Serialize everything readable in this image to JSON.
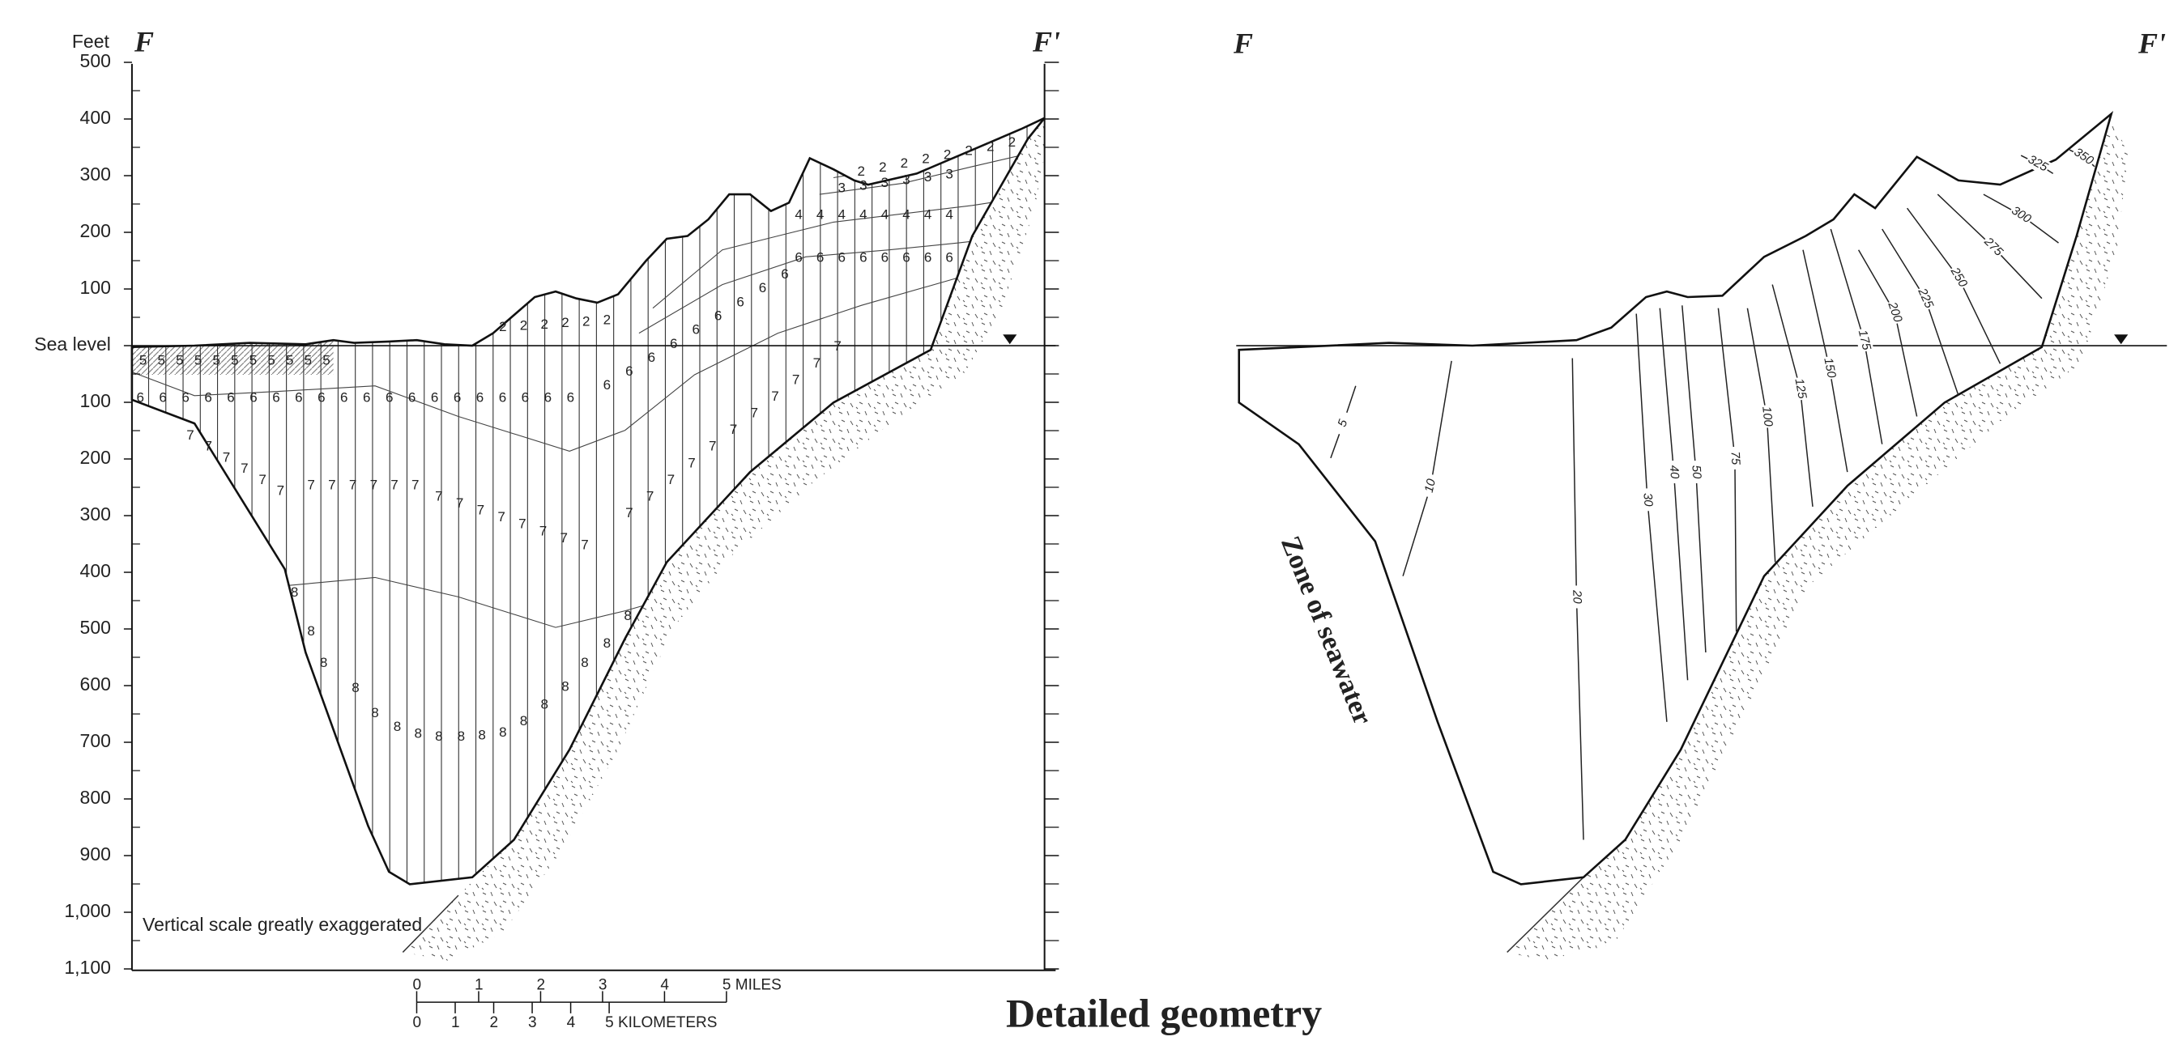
{
  "left_section": {
    "start_label": "F",
    "end_label": "F'",
    "axis_unit": "Feet",
    "ticks": [
      {
        "value": 500,
        "label": "500"
      },
      {
        "value": 400,
        "label": "400"
      },
      {
        "value": 300,
        "label": "300"
      },
      {
        "value": 200,
        "label": "200"
      },
      {
        "value": 100,
        "label": "100"
      },
      {
        "value": 0,
        "label": "Sea level"
      },
      {
        "value": -100,
        "label": "100"
      },
      {
        "value": -200,
        "label": "200"
      },
      {
        "value": -300,
        "label": "300"
      },
      {
        "value": -400,
        "label": "400"
      },
      {
        "value": -500,
        "label": "500"
      },
      {
        "value": -600,
        "label": "600"
      },
      {
        "value": -700,
        "label": "700"
      },
      {
        "value": -800,
        "label": "800"
      },
      {
        "value": -900,
        "label": "900"
      },
      {
        "value": -1000,
        "label": "1,000"
      },
      {
        "value": -1100,
        "label": "1,100"
      }
    ],
    "note": "Vertical scale greatly exaggerated"
  },
  "layer_labels": {
    "row_5": [
      "5",
      "5",
      "5",
      "5",
      "5",
      "5",
      "5",
      "5",
      "5",
      "5",
      "5"
    ],
    "row_6": [
      "6",
      "6",
      "6",
      "6",
      "6",
      "6",
      "6",
      "6",
      "6",
      "6",
      "6",
      "6",
      "6",
      "6",
      "6",
      "6",
      "6",
      "6",
      "6",
      "6",
      "6",
      "6",
      "6",
      "6",
      "6",
      "6",
      "6",
      "6",
      "6",
      "6",
      "6",
      "6",
      "6",
      "6",
      "6",
      "6",
      "6"
    ],
    "row_7": [
      "7",
      "7",
      "7",
      "7",
      "7",
      "7",
      "7",
      "7",
      "7",
      "7",
      "7",
      "7",
      "7",
      "7",
      "7",
      "7",
      "7",
      "7",
      "7",
      "7",
      "7",
      "7",
      "7",
      "7",
      "7",
      "7",
      "7",
      "7",
      "7",
      "7",
      "7"
    ],
    "row_8": [
      "8",
      "8",
      "8",
      "8",
      "8",
      "8",
      "8",
      "8",
      "8",
      "8",
      "8",
      "8",
      "8",
      "8",
      "8",
      "8",
      "8"
    ],
    "row_4": [
      "4",
      "4",
      "4",
      "4",
      "4",
      "4",
      "4",
      "4"
    ],
    "row_3": [
      "3",
      "3",
      "3",
      "3",
      "3",
      "3"
    ],
    "row_2": [
      "2",
      "2",
      "2",
      "2",
      "2",
      "2",
      "2",
      "2",
      "2",
      "2",
      "2",
      "2",
      "2",
      "2"
    ]
  },
  "scale_bar": {
    "miles": [
      "0",
      "1",
      "2",
      "3",
      "4",
      "5 MILES"
    ],
    "kilometers": [
      "0",
      "1",
      "2",
      "3",
      "4",
      "5 KILOMETERS"
    ]
  },
  "right_section": {
    "start_label": "F",
    "end_label": "F'",
    "zone_label": "Zone of seawater",
    "contours": [
      "5",
      "10",
      "20",
      "30",
      "40",
      "50",
      "75",
      "100",
      "125",
      "150",
      "175",
      "200",
      "225",
      "250",
      "275",
      "300",
      "325",
      "350"
    ]
  },
  "caption": "Detailed geometry"
}
